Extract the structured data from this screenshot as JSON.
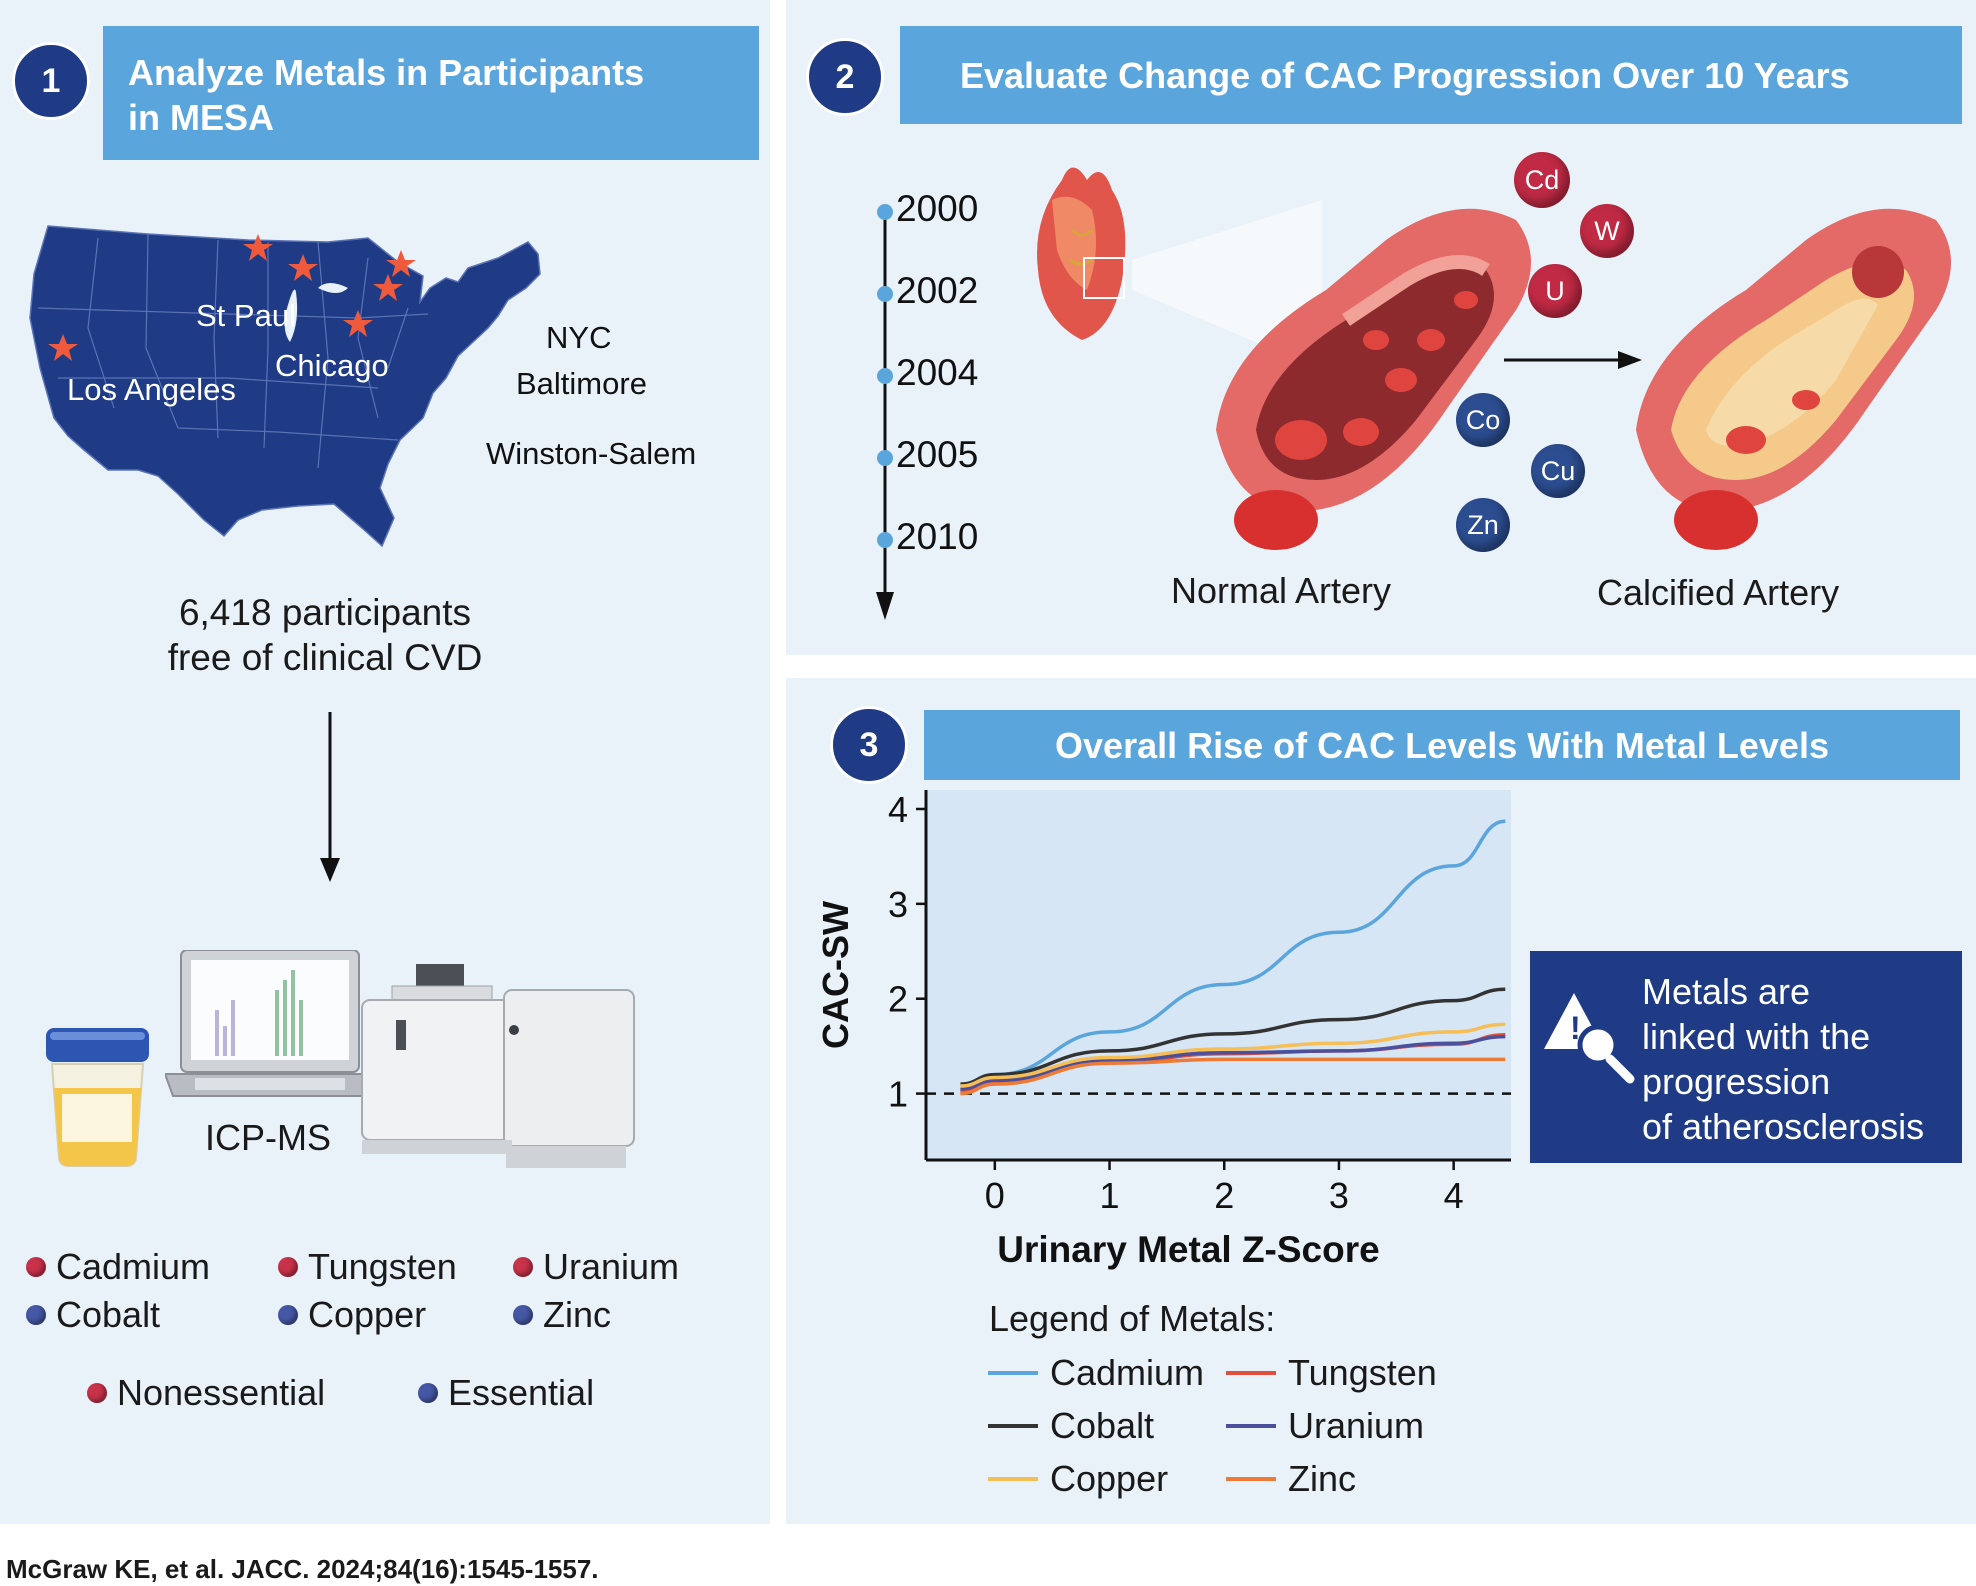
{
  "panel1": {
    "step": "1",
    "title_line1": "Analyze Metals in Participants",
    "title_line2": "in MESA",
    "cities": {
      "st_paul": "St Paul",
      "chicago": "Chicago",
      "los_angeles": "Los Angeles",
      "nyc": "NYC",
      "baltimore": "Baltimore",
      "winston_salem": "Winston-Salem"
    },
    "participants_line1": "6,418 participants",
    "participants_line2": "free of clinical CVD",
    "instrument_label": "ICP-MS",
    "metals": [
      {
        "name": "Cadmium",
        "type": "nonessential"
      },
      {
        "name": "Tungsten",
        "type": "nonessential"
      },
      {
        "name": "Uranium",
        "type": "nonessential"
      },
      {
        "name": "Cobalt",
        "type": "essential"
      },
      {
        "name": "Copper",
        "type": "essential"
      },
      {
        "name": "Zinc",
        "type": "essential"
      }
    ],
    "key_nonessential": "Nonessential",
    "key_essential": "Essential"
  },
  "panel2": {
    "step": "2",
    "title": "Evaluate Change of CAC Progression Over 10 Years",
    "years": [
      "2000",
      "2002",
      "2004",
      "2005",
      "2010"
    ],
    "ions": [
      "Cd",
      "W",
      "U",
      "Co",
      "Cu",
      "Zn"
    ],
    "normal_label": "Normal Artery",
    "calcified_label": "Calcified Artery"
  },
  "panel3": {
    "step": "3",
    "title": "Overall Rise of CAC Levels With Metal Levels",
    "legend_title": "Legend of Metals:",
    "callout": [
      "Metals are",
      "linked with the",
      "progression",
      "of atherosclerosis"
    ]
  },
  "chart_data": {
    "type": "line",
    "title": "",
    "xlabel": "Urinary Metal Z-Score",
    "ylabel": "CAC-SW",
    "xlim": [
      -0.6,
      4.5
    ],
    "ylim": [
      0.3,
      4.2
    ],
    "xticks": [
      0,
      1,
      2,
      3,
      4
    ],
    "yticks": [
      1,
      2,
      3,
      4
    ],
    "reference_line": {
      "y": 1,
      "style": "dashed"
    },
    "x": [
      -0.3,
      0,
      1,
      2,
      3,
      4,
      4.45
    ],
    "series": [
      {
        "name": "Cadmium",
        "color": "#5aa5dc",
        "values": [
          1.05,
          1.2,
          1.65,
          2.15,
          2.7,
          3.4,
          3.87
        ]
      },
      {
        "name": "Tungsten",
        "color": "#e0503e",
        "values": [
          1.02,
          1.12,
          1.33,
          1.42,
          1.45,
          1.52,
          1.62
        ]
      },
      {
        "name": "Cobalt",
        "color": "#333333",
        "values": [
          1.1,
          1.2,
          1.45,
          1.63,
          1.78,
          1.98,
          2.1
        ]
      },
      {
        "name": "Uranium",
        "color": "#4b4f9c",
        "values": [
          1.05,
          1.14,
          1.35,
          1.43,
          1.45,
          1.53,
          1.6
        ]
      },
      {
        "name": "Copper",
        "color": "#f5be57",
        "values": [
          1.08,
          1.17,
          1.38,
          1.47,
          1.53,
          1.65,
          1.73
        ]
      },
      {
        "name": "Zinc",
        "color": "#ee7b35",
        "values": [
          1.0,
          1.1,
          1.32,
          1.36,
          1.36,
          1.36,
          1.36
        ]
      }
    ]
  },
  "citation": "McGraw KE, et al. JACC. 2024;84(16):1545-1557."
}
